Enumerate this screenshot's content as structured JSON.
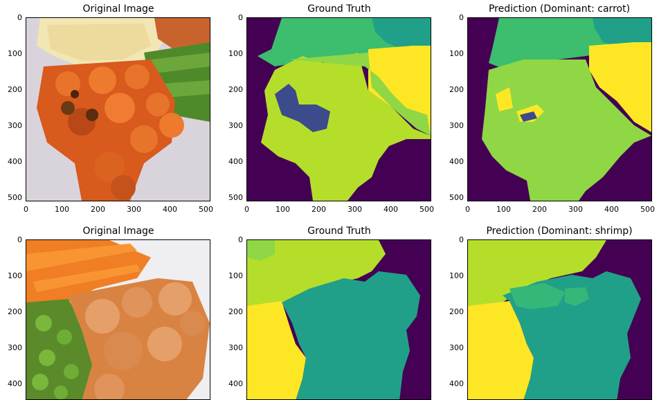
{
  "figure": {
    "rows": [
      {
        "panels": [
          {
            "title": "Original Image",
            "kind": "photo",
            "photo": "rice-carrot-shrimp-greenbeans"
          },
          {
            "title": "Ground Truth",
            "kind": "mask",
            "mask": "gt1"
          },
          {
            "title": "Prediction (Dominant: carrot)",
            "kind": "mask",
            "mask": "pred1"
          }
        ],
        "y_ticks": [
          "0",
          "100",
          "200",
          "300",
          "400",
          "500"
        ],
        "x_ticks": [
          "0",
          "100",
          "200",
          "300",
          "400",
          "500"
        ]
      },
      {
        "panels": [
          {
            "title": "Original Image",
            "kind": "photo",
            "photo": "carrot-shrimp-edamame"
          },
          {
            "title": "Ground Truth",
            "kind": "mask",
            "mask": "gt2"
          },
          {
            "title": "Prediction (Dominant: shrimp)",
            "kind": "mask",
            "mask": "pred2"
          }
        ],
        "y_ticks": [
          "0",
          "100",
          "200",
          "300",
          "400"
        ],
        "x_ticks": []
      }
    ],
    "colors": {
      "background": "#440154",
      "class_purple_blue": "#3b4b8c",
      "class_teal": "#21a089",
      "class_green": "#3dbd6e",
      "class_lime": "#8fd744",
      "class_yellowgreen": "#b5de2b",
      "class_yellow": "#fde725",
      "class_mint": "#35b779"
    }
  }
}
